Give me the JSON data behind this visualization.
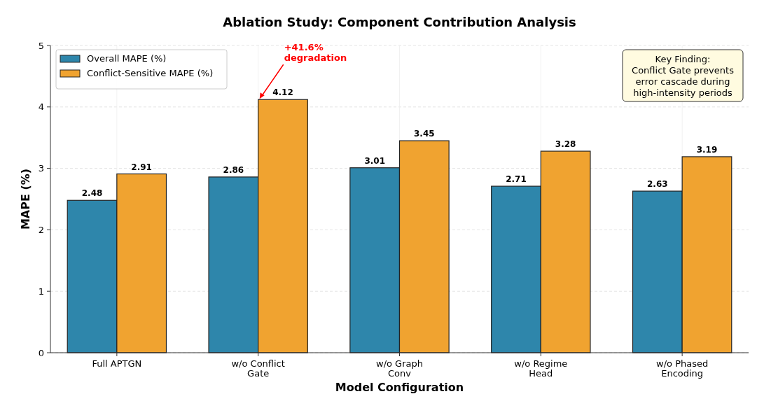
{
  "chart_data": {
    "type": "bar",
    "title": "Ablation Study: Component Contribution Analysis",
    "xlabel": "Model Configuration",
    "ylabel": "MAPE (%)",
    "categories": [
      "Full APTGN",
      "w/o Conflict\nGate",
      "w/o Graph\nConv",
      "w/o Regime\nHead",
      "w/o Phased\nEncoding"
    ],
    "series": [
      {
        "name": "Overall MAPE (%)",
        "color": "#2e86ab",
        "values": [
          2.48,
          2.86,
          3.01,
          2.71,
          2.63
        ]
      },
      {
        "name": "Conflict-Sensitive MAPE (%)",
        "color": "#f0a330",
        "values": [
          2.91,
          4.12,
          3.45,
          3.28,
          3.19
        ]
      }
    ],
    "ylim": [
      0,
      5
    ],
    "yticks": [
      0,
      1,
      2,
      3,
      4,
      5
    ],
    "grid": true,
    "legend": "top left",
    "data_labels": true,
    "annotations": [
      {
        "text": "+41.6%\ndegradation",
        "x": "w/o Conflict\nGate",
        "y": 4.12
      },
      "Key Finding:\nConflict Gate prevents\nerror cascade during\nhigh-intensity periods"
    ]
  }
}
